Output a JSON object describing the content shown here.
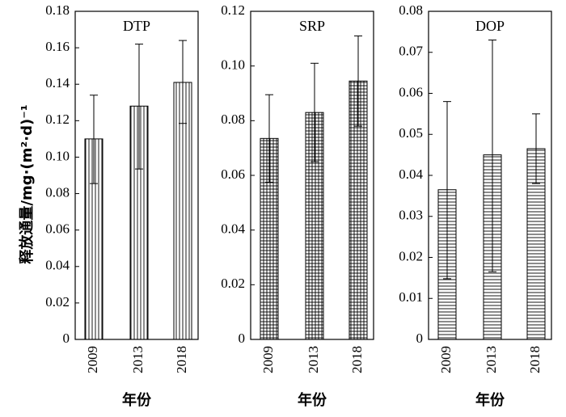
{
  "ylabel": "释放通量/mg·(m²·d)⁻¹",
  "chart_data": [
    {
      "type": "bar",
      "title": "DTP",
      "categories": [
        "2009",
        "2013",
        "2018"
      ],
      "values": [
        0.11,
        0.128,
        0.141
      ],
      "errors_upper": [
        0.134,
        0.162,
        0.164
      ],
      "errors_lower": [
        0.0855,
        0.0935,
        0.1185
      ],
      "ylim": [
        0,
        0.18
      ],
      "yticks": [
        0,
        0.02,
        0.04,
        0.06,
        0.08,
        0.1,
        0.12,
        0.14,
        0.16,
        0.18
      ],
      "ytick_labels": [
        "0",
        "0.02",
        "0.04",
        "0.06",
        "0.08",
        "0.10",
        "0.12",
        "0.14",
        "0.16",
        "0.18"
      ],
      "xlabel": "年份",
      "pattern": "vertical"
    },
    {
      "type": "bar",
      "title": "SRP",
      "categories": [
        "2009",
        "2013",
        "2018"
      ],
      "values": [
        0.0735,
        0.083,
        0.0945
      ],
      "errors_upper": [
        0.0895,
        0.101,
        0.111
      ],
      "errors_lower": [
        0.0575,
        0.065,
        0.078
      ],
      "ylim": [
        0,
        0.12
      ],
      "yticks": [
        0,
        0.02,
        0.04,
        0.06,
        0.08,
        0.1,
        0.12
      ],
      "ytick_labels": [
        "0",
        "0.02",
        "0.04",
        "0.06",
        "0.08",
        "0.10",
        "0.12"
      ],
      "xlabel": "年份",
      "pattern": "grid"
    },
    {
      "type": "bar",
      "title": "DOP",
      "categories": [
        "2009",
        "2013",
        "2018"
      ],
      "values": [
        0.0365,
        0.045,
        0.0465
      ],
      "errors_upper": [
        0.058,
        0.073,
        0.055
      ],
      "errors_lower": [
        0.0148,
        0.0165,
        0.038
      ],
      "ylim": [
        0,
        0.08
      ],
      "yticks": [
        0,
        0.01,
        0.02,
        0.03,
        0.04,
        0.05,
        0.06,
        0.07,
        0.08
      ],
      "ytick_labels": [
        "0",
        "0.01",
        "0.02",
        "0.03",
        "0.04",
        "0.05",
        "0.06",
        "0.07",
        "0.08"
      ],
      "xlabel": "年份",
      "pattern": "horizontal"
    }
  ]
}
